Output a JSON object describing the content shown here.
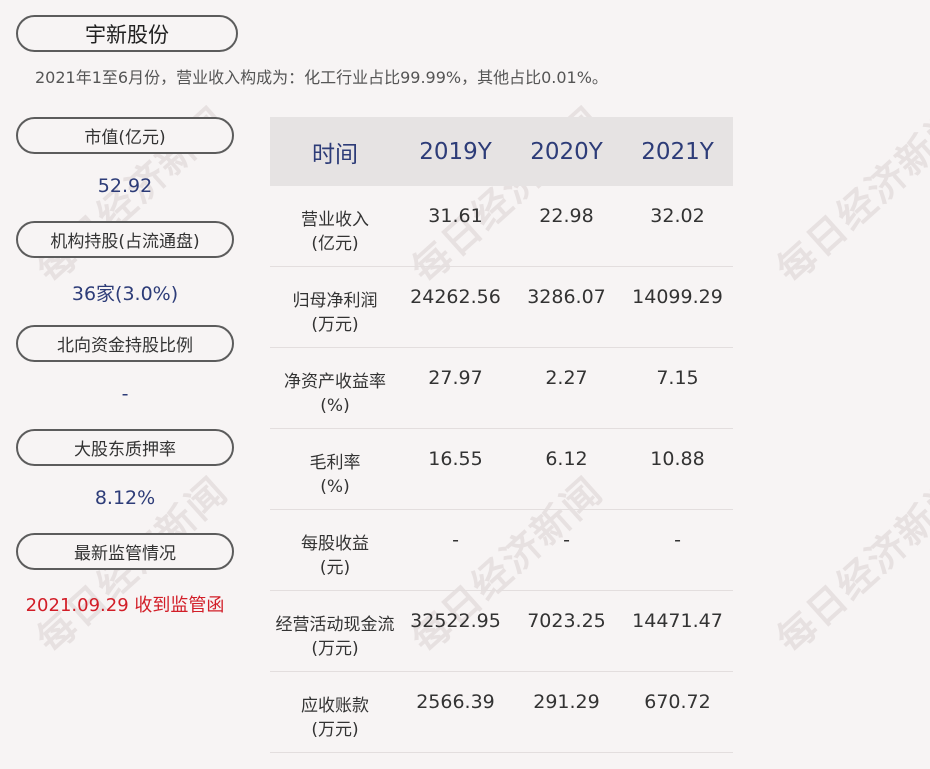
{
  "company": "宇新股份",
  "summary": "2021年1至6月份，营业收入构成为：化工行业占比99.99%，其他占比0.01%。",
  "watermark_text": "每日经济新闻",
  "left_panel": [
    {
      "label": "市值(亿元)",
      "value": "52.92"
    },
    {
      "label": "机构持股(占流通盘)",
      "value": "36家(3.0%)"
    },
    {
      "label": "北向资金持股比例",
      "value": "-"
    },
    {
      "label": "大股东质押率",
      "value": "8.12%"
    },
    {
      "label": "最新监管情况",
      "value": "2021.09.29 收到监管函"
    }
  ],
  "table": {
    "headers": [
      "时间",
      "2019Y",
      "2020Y",
      "2021Y"
    ],
    "rows": [
      {
        "label1": "营业收入",
        "label2": "(亿元)",
        "values": [
          "31.61",
          "22.98",
          "32.02"
        ]
      },
      {
        "label1": "归母净利润",
        "label2": "(万元)",
        "values": [
          "24262.56",
          "3286.07",
          "14099.29"
        ]
      },
      {
        "label1": "净资产收益率",
        "label2": "(%)",
        "values": [
          "27.97",
          "2.27",
          "7.15"
        ]
      },
      {
        "label1": "毛利率",
        "label2": "(%)",
        "values": [
          "16.55",
          "6.12",
          "10.88"
        ]
      },
      {
        "label1": "每股收益",
        "label2": "(元)",
        "values": [
          "-",
          "-",
          "-"
        ]
      },
      {
        "label1": "经营活动现金流",
        "label2": "(万元)",
        "values": [
          "32522.95",
          "7023.25",
          "14471.47"
        ]
      },
      {
        "label1": "应收账款",
        "label2": "(万元)",
        "values": [
          "2566.39",
          "291.29",
          "670.72"
        ]
      }
    ]
  },
  "colors": {
    "accent_blue": "#2d3c78",
    "alert_red": "#d21e28",
    "header_bg": "#e6e3e3",
    "page_bg": "#f7f4f4"
  }
}
